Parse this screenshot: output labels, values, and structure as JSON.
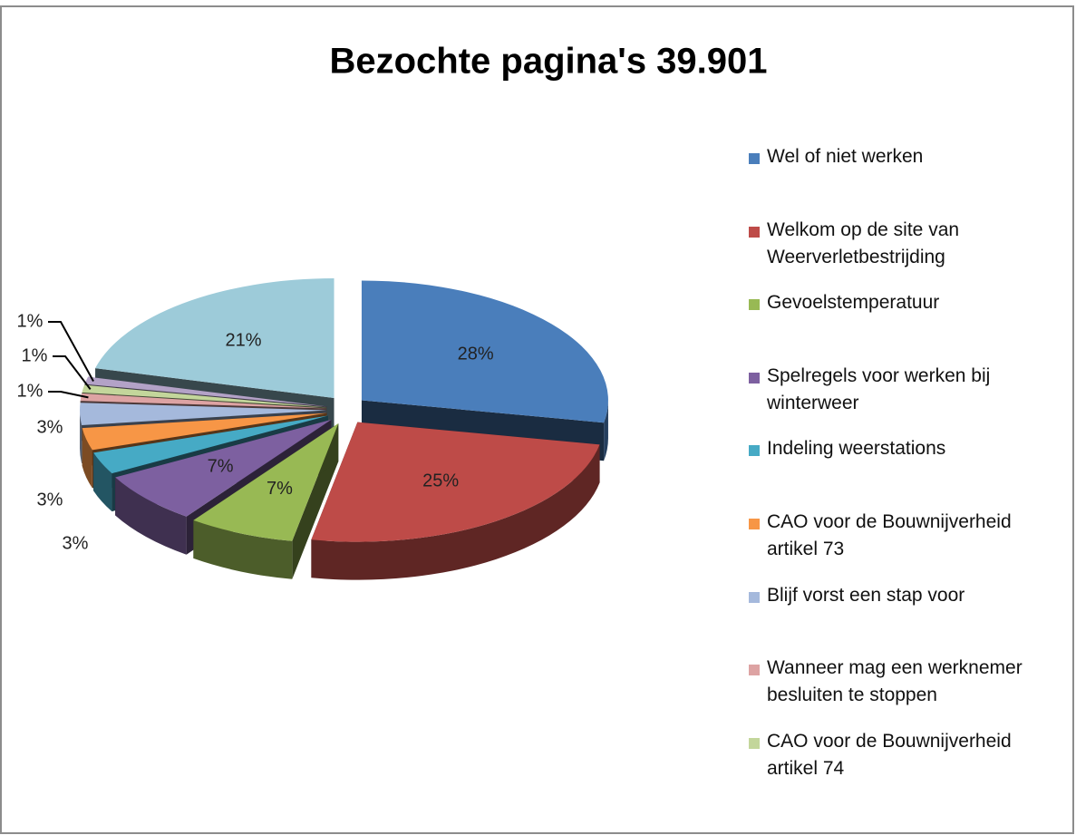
{
  "chart_data": {
    "type": "pie",
    "title": "Bezochte pagina's 39.901",
    "categories": [
      "Wel of niet werken",
      "Welkom op de site van Weerverletbestrijding",
      "Gevoelstemperatuur",
      "Spelregels voor werken bij winterweer",
      "Indeling weerstations",
      "CAO voor de Bouwnijverheid artikel 73",
      "Blijf vorst een stap voor",
      "Wanneer mag een werknemer besluiten te stoppen",
      "CAO voor de Bouwnijverheid artikel 74",
      null,
      null
    ],
    "values": [
      28,
      25,
      7,
      7,
      3,
      3,
      3,
      1,
      1,
      1,
      21
    ],
    "value_labels": [
      "28%",
      "25%",
      "7%",
      "7%",
      "3%",
      "3%",
      "3%",
      "1%",
      "1%",
      "1%",
      "21%"
    ],
    "colors": [
      "#4a7ebb",
      "#be4b48",
      "#98b954",
      "#7d60a0",
      "#46aac5",
      "#f79646",
      "#a5b9dc",
      "#dda3a3",
      "#c3d69b",
      "#b3a2c7",
      "#9dcbd9"
    ],
    "legend": "right"
  }
}
